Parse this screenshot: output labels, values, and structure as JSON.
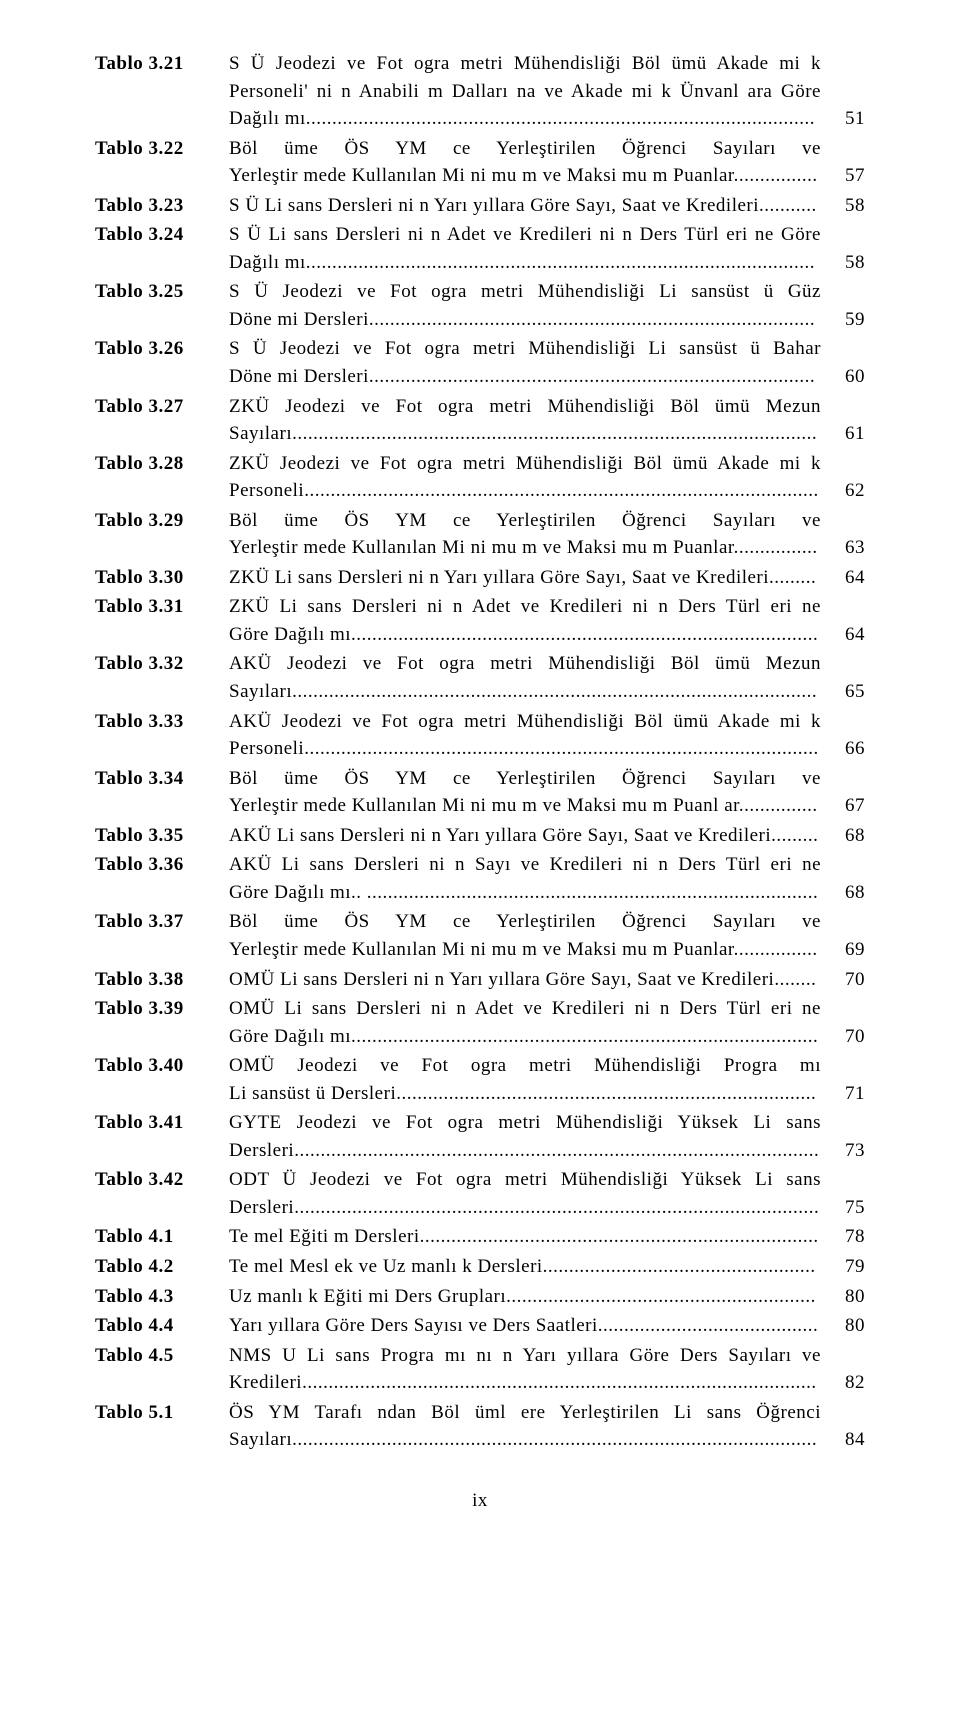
{
  "entries": [
    {
      "label": "Tablo 3.21",
      "lines": [
        "S Ü Jeodezi ve Fot ogra metri Mühendisliği Böl ümü Akade mi k",
        "Personeli' ni n Anabili m Dalları na ve Akade mi k Ünvanl ara Göre"
      ],
      "leader": "Dağılı mı...",
      "page": "51"
    },
    {
      "label": "Tablo 3.22",
      "lines": [
        "Böl üme ÖS YM ce Yerleştirilen Öğrenci Sayıları ve"
      ],
      "leader": "Yerleştir mede Kullanılan Mi ni mu m ve Maksi mu m Puanlar...",
      "page": "57"
    },
    {
      "label": "Tablo 3.23",
      "lines": [],
      "leader": "S Ü Li sans Dersleri ni n Yarı yıllara Göre Sayı, Saat ve Kredileri...",
      "page": "58"
    },
    {
      "label": "Tablo 3.24",
      "lines": [
        "S Ü Li sans Dersleri ni n Adet ve Kredileri ni n Ders Türl eri ne Göre"
      ],
      "leader": "Dağılı mı...",
      "page": "58"
    },
    {
      "label": "Tablo 3.25",
      "lines": [
        "S Ü Jeodezi ve Fot ogra metri Mühendisliği Li sansüst ü Güz"
      ],
      "leader": "Döne mi Dersleri...",
      "page": "59"
    },
    {
      "label": "Tablo 3.26",
      "lines": [
        "S Ü Jeodezi ve Fot ogra metri Mühendisliği Li sansüst ü Bahar"
      ],
      "leader": "Döne mi Dersleri...",
      "page": "60"
    },
    {
      "label": "Tablo 3.27",
      "lines": [
        "ZKÜ Jeodezi ve Fot ogra metri Mühendisliği Böl ümü Mezun"
      ],
      "leader": "Sayıları...",
      "page": "61"
    },
    {
      "label": "Tablo 3.28",
      "lines": [
        "ZKÜ Jeodezi ve Fot ogra metri Mühendisliği Böl ümü Akade mi k"
      ],
      "leader": "Personeli...",
      "page": "62"
    },
    {
      "label": "Tablo 3.29",
      "lines": [
        "Böl üme ÖS YM ce Yerleştirilen Öğrenci Sayıları ve"
      ],
      "leader": "Yerleştir mede Kullanılan Mi ni mu m ve Maksi mu m Puanlar...",
      "page": "63"
    },
    {
      "label": "Tablo 3.30",
      "lines": [],
      "leader": "ZKÜ Li sans Dersleri ni n Yarı yıllara Göre Sayı, Saat ve Kredileri.",
      "page": "64"
    },
    {
      "label": "Tablo 3.31",
      "lines": [
        "ZKÜ Li sans Dersleri ni n Adet ve Kredileri ni n Ders Türl eri ne"
      ],
      "leader": "Göre Dağılı mı...",
      "page": "64"
    },
    {
      "label": "Tablo 3.32",
      "lines": [
        "AKÜ Jeodezi ve Fot ogra metri Mühendisliği Böl ümü Mezun"
      ],
      "leader": "Sayıları...",
      "page": "65"
    },
    {
      "label": "Tablo 3.33",
      "lines": [
        "AKÜ Jeodezi ve Fot ogra metri Mühendisliği Böl ümü Akade mi k"
      ],
      "leader": "Personeli...",
      "page": "66"
    },
    {
      "label": "Tablo 3.34",
      "lines": [
        "Böl üme ÖS YM ce Yerleştirilen Öğrenci Sayıları ve"
      ],
      "leader": "Yerleştir mede Kullanılan Mi ni mu m ve Maksi mu m Puanl ar...",
      "page": "67"
    },
    {
      "label": "Tablo 3.35",
      "lines": [],
      "leader": "AKÜ Li sans Dersleri ni n Yarı yıllara Göre Sayı, Saat ve Kredileri",
      "page": "68"
    },
    {
      "label": "Tablo 3.36",
      "lines": [
        "AKÜ Li sans Dersleri ni n Sayı ve Kredileri ni n Ders Türl eri ne"
      ],
      "leader": "Göre Dağılı mı.. ...",
      "page": "68"
    },
    {
      "label": "Tablo 3.37",
      "lines": [
        "Böl üme ÖS YM ce Yerleştirilen Öğrenci Sayıları ve"
      ],
      "leader": "Yerleştir mede Kullanılan Mi ni mu m ve Maksi mu m Puanlar...",
      "page": "69"
    },
    {
      "label": "Tablo 3.38",
      "lines": [],
      "leader": "OMÜ Li sans Dersleri ni n Yarı yıllara Göre Sayı, Saat ve Kredileri",
      "page": "70"
    },
    {
      "label": "Tablo 3.39",
      "lines": [
        "OMÜ Li sans Dersleri ni n Adet ve Kredileri ni n Ders Türl eri ne"
      ],
      "leader": "Göre Dağılı mı...",
      "page": "70"
    },
    {
      "label": "Tablo 3.40",
      "lines": [
        "OMÜ Jeodezi ve Fot ogra metri Mühendisliği Progra mı"
      ],
      "leader": "Li sansüst ü Dersleri...",
      "page": "71"
    },
    {
      "label": "Tablo 3.41",
      "lines": [
        "GYTE Jeodezi ve Fot ogra metri Mühendisliği Yüksek Li sans"
      ],
      "leader": "Dersleri...",
      "page": "73"
    },
    {
      "label": "Tablo 3.42",
      "lines": [
        "ODT Ü Jeodezi ve Fot ogra metri Mühendisliği Yüksek Li sans"
      ],
      "leader": "Dersleri...",
      "page": "75"
    },
    {
      "label": "Tablo 4.1",
      "lines": [],
      "leader": "Te mel Eğiti m Dersleri...",
      "page": "78"
    },
    {
      "label": "Tablo 4.2",
      "lines": [],
      "leader": "Te mel Mesl ek ve Uz manlı k Dersleri...",
      "page": "79"
    },
    {
      "label": "Tablo 4.3",
      "lines": [],
      "leader": "Uz manlı k Eğiti mi Ders Grupları...",
      "page": "80"
    },
    {
      "label": "Tablo 4.4",
      "lines": [],
      "leader": "Yarı yıllara Göre Ders Sayısı ve Ders Saatleri...",
      "page": "80"
    },
    {
      "label": "Tablo 4.5",
      "lines": [
        "NMS U Li sans Progra mı nı n Yarı yıllara Göre Ders Sayıları ve"
      ],
      "leader": "Kredileri...",
      "page": "82"
    },
    {
      "label": "Tablo 5.1",
      "lines": [
        "ÖS YM Tarafı ndan Böl üml ere Yerleştirilen Li sans Öğrenci"
      ],
      "leader": "Sayıları...",
      "page": "84"
    }
  ],
  "pagenum": "ix"
}
